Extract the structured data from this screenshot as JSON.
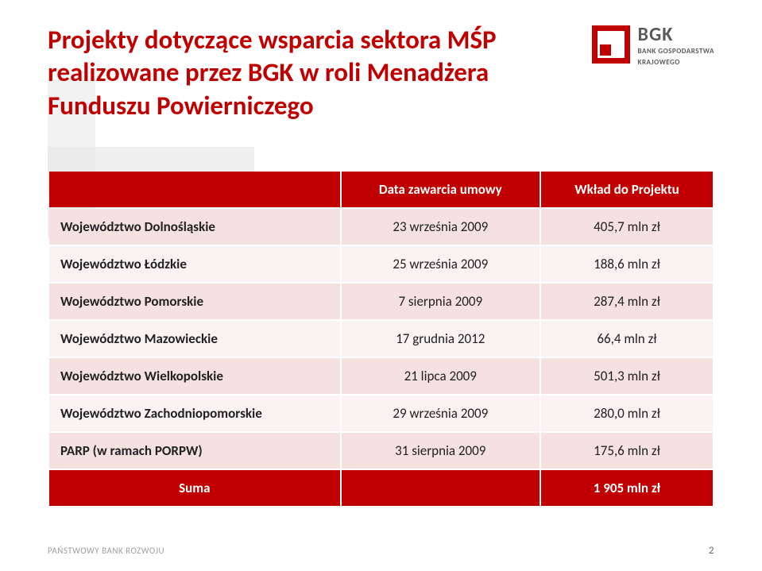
{
  "colors": {
    "brand_red": "#c00000",
    "row_odd": "#f6e1e1",
    "row_even": "#fbf3f3",
    "bg_deco_light": "#f2f2f2",
    "bg_deco_mid": "#e8e8e8",
    "logo_text": "#5a5a5a"
  },
  "title": "Projekty dotyczące wsparcia sektora MŚP realizowane przez BGK w roli Menadżera Funduszu Powierniczego",
  "logo": {
    "abbr": "BGK",
    "line1": "BANK GOSPODARSTWA",
    "line2": "KRAJOWEGO"
  },
  "table": {
    "type": "table",
    "col_widths_pct": [
      44,
      30,
      26
    ],
    "header_bg": "#c00000",
    "header_fg": "#ffffff",
    "row_odd_bg": "#f6e1e1",
    "row_even_bg": "#fbf3f3",
    "font_size_pt": 13,
    "columns": [
      "",
      "Data zawarcia umowy",
      "Wkład do Projektu"
    ],
    "rows": [
      {
        "name": "Województwo Dolnośląskie",
        "date": "23 września 2009",
        "value": "405,7 mln zł"
      },
      {
        "name": "Województwo Łódzkie",
        "date": "25 września 2009",
        "value": "188,6 mln zł"
      },
      {
        "name": "Województwo Pomorskie",
        "date": "7 sierpnia 2009",
        "value": "287,4 mln zł"
      },
      {
        "name": "Województwo Mazowieckie",
        "date": "17 grudnia 2012",
        "value": "66,4 mln zł"
      },
      {
        "name": "Województwo Wielkopolskie",
        "date": "21 lipca 2009",
        "value": "501,3 mln zł"
      },
      {
        "name": "Województwo Zachodniopomorskie",
        "date": "29 września 2009",
        "value": "280,0 mln zł"
      },
      {
        "name": "PARP (w ramach PORPW)",
        "date": "31 sierpnia 2009",
        "value": "175,6 mln zł"
      }
    ],
    "sum": {
      "label": "Suma",
      "value": "1 905 mln zł"
    }
  },
  "footer": {
    "left": "PAŃSTWOWY BANK ROZWOJU",
    "page": "2"
  }
}
